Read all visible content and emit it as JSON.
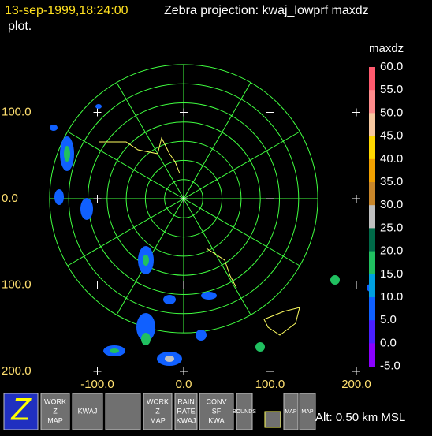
{
  "header": {
    "timestamp": "13-sep-1999,18:24:00",
    "title": "Zebra projection: kwaj_lowprf maxdz",
    "title_cont": "plot."
  },
  "plot": {
    "x_labels": [
      "-100.0",
      "0.0",
      "100.0",
      "200.0"
    ],
    "y_labels": [
      "100.0",
      "0.0",
      "100.0",
      "200.0"
    ]
  },
  "colorbar": {
    "title": "maxdz",
    "labels": [
      "60.0",
      "55.0",
      "50.0",
      "45.0",
      "40.0",
      "35.0",
      "30.0",
      "25.0",
      "20.0",
      "15.0",
      "10.0",
      "5.0",
      "0.0",
      "-5.0"
    ],
    "colors": [
      "#ff5a6e",
      "#ff8c8c",
      "#f8c8a0",
      "#ffd700",
      "#f0a000",
      "#c8862a",
      "#c0c0c0",
      "#006a48",
      "#20c060",
      "#00a0e0",
      "#1060ff",
      "#4a20ff",
      "#8a00ff"
    ]
  },
  "toolbar": {
    "buttons": [
      {
        "lines": [
          "Z"
        ]
      },
      {
        "lines": [
          "WORK",
          "Z",
          "MAP"
        ]
      },
      {
        "lines": [
          "KWAJ"
        ]
      },
      {
        "lines": [
          ""
        ]
      },
      {
        "lines": [
          "WORK",
          "Z",
          "MAP"
        ]
      },
      {
        "lines": [
          "RAIN",
          "RATE",
          "KWAJ"
        ]
      },
      {
        "lines": [
          "CONV",
          "SF",
          "KWA"
        ]
      },
      {
        "lines": [
          "BOUNDS"
        ]
      },
      {
        "lines": [
          "MAP"
        ]
      },
      {
        "lines": [
          "MAP"
        ]
      }
    ]
  },
  "status": "Alt: 0.50 km MSL"
}
